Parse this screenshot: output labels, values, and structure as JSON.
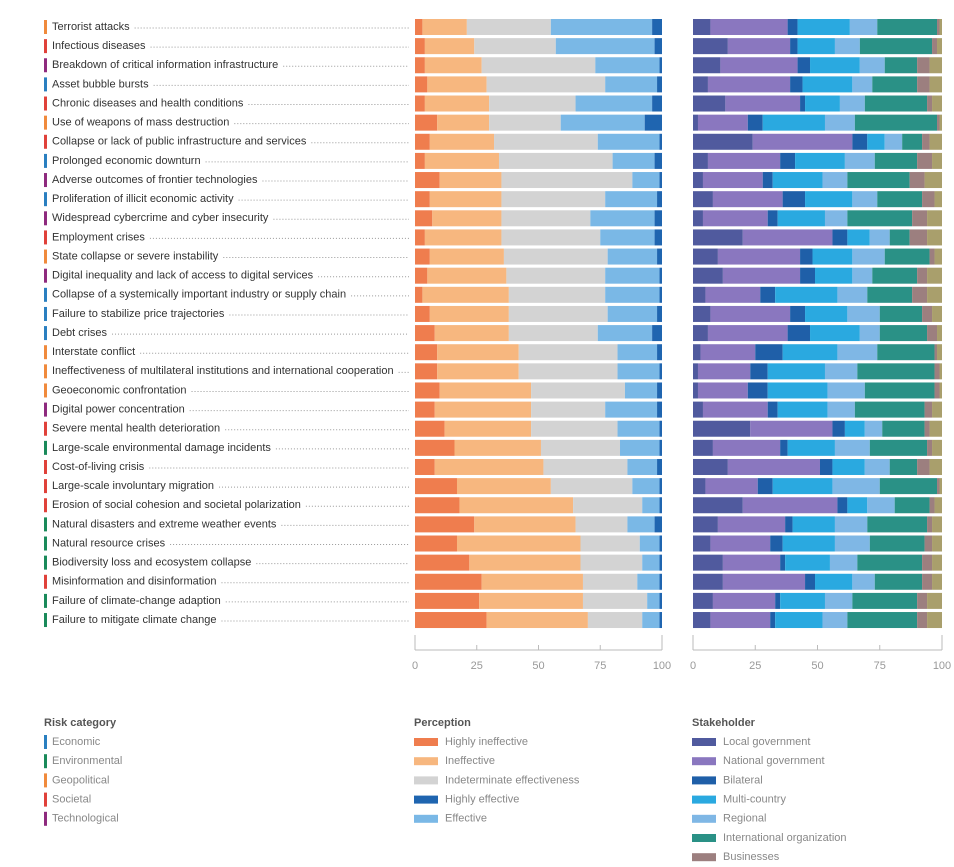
{
  "chart_data": {
    "type": "bar",
    "orientation": "horizontal",
    "stacked": true,
    "categories": [
      "Terrorist attacks",
      "Infectious diseases",
      "Breakdown of critical information infrastructure",
      "Asset bubble bursts",
      "Chronic diseases and health conditions",
      "Use of weapons of mass destruction",
      "Collapse or lack of public infrastructure and services",
      "Prolonged economic downturn",
      "Adverse outcomes of frontier technologies",
      "Proliferation of illicit economic activity",
      "Widespread cybercrime and cyber insecurity",
      "Employment crises",
      "State collapse or severe instability",
      "Digital inequality and lack of access to digital services",
      "Collapse of a systemically important industry or supply chain",
      "Failure to stabilize price trajectories",
      "Debt crises",
      "Interstate conflict",
      "Ineffectiveness of multilateral institutions and international cooperation",
      "Geoeconomic confrontation",
      "Digital power concentration",
      "Severe mental health deterioration",
      "Large-scale environmental damage incidents",
      "Cost-of-living crisis",
      "Large-scale involuntary migration",
      "Erosion of social cohesion and societal polarization",
      "Natural disasters and extreme weather events",
      "Natural resource crises",
      "Biodiversity loss and ecosystem collapse",
      "Misinformation and disinformation",
      "Failure of climate-change adaption",
      "Failure to mitigate climate change"
    ],
    "category_risk": [
      "Geopolitical",
      "Societal",
      "Technological",
      "Economic",
      "Societal",
      "Geopolitical",
      "Societal",
      "Economic",
      "Technological",
      "Economic",
      "Technological",
      "Societal",
      "Geopolitical",
      "Technological",
      "Economic",
      "Economic",
      "Economic",
      "Geopolitical",
      "Geopolitical",
      "Geopolitical",
      "Technological",
      "Societal",
      "Environmental",
      "Societal",
      "Societal",
      "Societal",
      "Environmental",
      "Environmental",
      "Environmental",
      "Societal",
      "Environmental",
      "Environmental"
    ],
    "risk_legend": {
      "title": "Risk category",
      "items": [
        {
          "name": "Economic",
          "color": "#2a7fc0"
        },
        {
          "name": "Environmental",
          "color": "#1a8a5a"
        },
        {
          "name": "Geopolitical",
          "color": "#f08a3c"
        },
        {
          "name": "Societal",
          "color": "#e0413a"
        },
        {
          "name": "Technological",
          "color": "#8e2a7e"
        }
      ]
    },
    "panels": [
      {
        "legend_title": "Perception",
        "xlim": [
          0,
          100
        ],
        "xticks": [
          0,
          25,
          50,
          75,
          100
        ],
        "series": [
          {
            "name": "Highly ineffective",
            "color": "#ef7d4e",
            "values": [
              3,
              4,
              4,
              5,
              4,
              9,
              6,
              4,
              10,
              6,
              7,
              4,
              6,
              5,
              3,
              6,
              8,
              9,
              9,
              10,
              8,
              12,
              16,
              8,
              17,
              18,
              24,
              17,
              22,
              27,
              26,
              29
            ]
          },
          {
            "name": "Ineffective",
            "color": "#f7b77f",
            "values": [
              18,
              20,
              23,
              24,
              26,
              21,
              26,
              30,
              25,
              29,
              28,
              31,
              30,
              32,
              35,
              32,
              30,
              33,
              33,
              37,
              39,
              35,
              35,
              44,
              38,
              46,
              41,
              50,
              45,
              41,
              42,
              41
            ]
          },
          {
            "name": "Indeterminate effectiveness",
            "color": "#d3d3d3",
            "values": [
              34,
              33,
              46,
              48,
              35,
              29,
              42,
              46,
              53,
              42,
              36,
              40,
              42,
              40,
              39,
              40,
              36,
              40,
              40,
              38,
              30,
              35,
              32,
              34,
              33,
              28,
              21,
              24,
              25,
              22,
              26,
              22
            ]
          },
          {
            "name": "Highly effective",
            "color": "#1f65b0",
            "values": [
              4,
              3,
              1,
              2,
              4,
              7,
              1,
              3,
              1,
              2,
              3,
              3,
              2,
              1,
              1,
              2,
              4,
              2,
              1,
              2,
              2,
              1,
              1,
              2,
              1,
              1,
              3,
              1,
              1,
              1,
              1,
              1
            ]
          },
          {
            "name": "Effective",
            "color": "#7ab8e6",
            "values": [
              41,
              40,
              26,
              21,
              31,
              34,
              25,
              17,
              11,
              21,
              26,
              22,
              20,
              22,
              22,
              20,
              22,
              16,
              17,
              13,
              21,
              17,
              16,
              12,
              11,
              7,
              11,
              8,
              7,
              9,
              5,
              7
            ]
          }
        ]
      },
      {
        "legend_title": "Stakeholder",
        "xlim": [
          0,
          100
        ],
        "xticks": [
          0,
          25,
          50,
          75,
          100
        ],
        "series": [
          {
            "name": "Local government",
            "color": "#505a9e",
            "values": [
              7,
              14,
              11,
              6,
              13,
              2,
              24,
              6,
              4,
              8,
              4,
              20,
              10,
              12,
              5,
              7,
              6,
              3,
              2,
              2,
              4,
              23,
              8,
              14,
              5,
              20,
              10,
              7,
              12,
              12,
              8,
              7
            ]
          },
          {
            "name": "National government",
            "color": "#8a77bf",
            "values": [
              31,
              25,
              31,
              33,
              30,
              20,
              40,
              29,
              24,
              28,
              26,
              36,
              33,
              31,
              22,
              32,
              32,
              22,
              21,
              20,
              26,
              33,
              27,
              37,
              21,
              38,
              27,
              24,
              23,
              33,
              25,
              24
            ]
          },
          {
            "name": "Bilateral",
            "color": "#1f5fa8",
            "values": [
              4,
              3,
              5,
              5,
              2,
              6,
              6,
              6,
              4,
              9,
              4,
              6,
              5,
              6,
              6,
              6,
              9,
              11,
              7,
              8,
              4,
              5,
              3,
              5,
              6,
              4,
              3,
              5,
              2,
              4,
              2,
              2
            ]
          },
          {
            "name": "Multi-country",
            "color": "#2aa9e0",
            "values": [
              21,
              15,
              20,
              20,
              14,
              25,
              7,
              20,
              20,
              19,
              19,
              9,
              16,
              15,
              25,
              17,
              20,
              22,
              23,
              24,
              20,
              8,
              19,
              13,
              24,
              8,
              17,
              21,
              18,
              15,
              18,
              19
            ]
          },
          {
            "name": "Regional",
            "color": "#7fb7e5",
            "values": [
              11,
              10,
              10,
              8,
              10,
              12,
              7,
              12,
              10,
              10,
              9,
              8,
              13,
              8,
              12,
              13,
              8,
              16,
              13,
              15,
              11,
              7,
              14,
              10,
              19,
              11,
              13,
              14,
              11,
              9,
              11,
              10
            ]
          },
          {
            "name": "International organization",
            "color": "#2a9186",
            "values": [
              24,
              29,
              13,
              18,
              25,
              33,
              8,
              17,
              25,
              18,
              26,
              8,
              18,
              18,
              18,
              17,
              19,
              23,
              31,
              28,
              28,
              17,
              23,
              11,
              23,
              14,
              24,
              22,
              26,
              19,
              26,
              28
            ]
          },
          {
            "name": "Businesses",
            "color": "#9c7f7f",
            "values": [
              1,
              2,
              5,
              5,
              2,
              1,
              3,
              6,
              6,
              5,
              6,
              7,
              2,
              4,
              6,
              4,
              4,
              1,
              2,
              2,
              3,
              2,
              2,
              5,
              1,
              2,
              2,
              3,
              4,
              4,
              4,
              4
            ]
          },
          {
            "color": "#a99f6c",
            "values": [
              1,
              2,
              5,
              5,
              4,
              1,
              5,
              4,
              7,
              3,
              6,
              6,
              3,
              6,
              6,
              4,
              2,
              2,
              1,
              1,
              4,
              5,
              4,
              5,
              1,
              3,
              4,
              4,
              4,
              4,
              6,
              6
            ]
          }
        ]
      }
    ]
  }
}
